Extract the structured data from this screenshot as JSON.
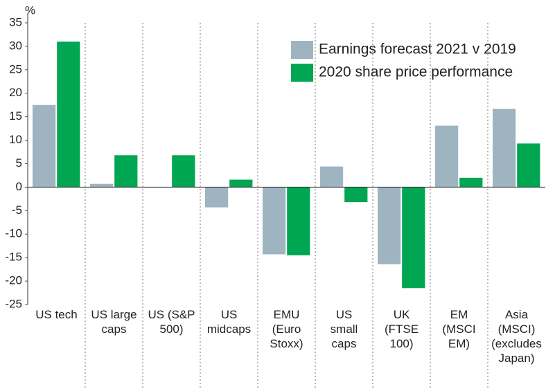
{
  "chart_data": {
    "type": "bar",
    "y_label": "%",
    "categories": [
      "US tech",
      "US large\ncaps",
      "US (S&P\n500)",
      "US\nmidcaps",
      "EMU\n(Euro\nStoxx)",
      "US\nsmall\ncaps",
      "UK\n(FTSE\n100)",
      "EM\n(MSCI\nEM)",
      "Asia\n(MSCI)\n(excludes\nJapan)"
    ],
    "series": [
      {
        "name": "Earnings forecast 2021 v 2019",
        "color": "#9eb4c1",
        "values": [
          17.5,
          0.7,
          0,
          -4.3,
          -14.3,
          4.4,
          -16.4,
          13.1,
          16.7
        ]
      },
      {
        "name": "2020 share price performance",
        "color": "#00a651",
        "values": [
          31,
          6.8,
          6.8,
          1.6,
          -14.5,
          -3.2,
          -21.5,
          2,
          9.3
        ]
      }
    ],
    "ylim": [
      -25,
      35
    ],
    "yticks": [
      -25,
      -20,
      -15,
      -10,
      -5,
      0,
      5,
      10,
      15,
      20,
      25,
      30,
      35
    ],
    "legend": "top-right"
  }
}
